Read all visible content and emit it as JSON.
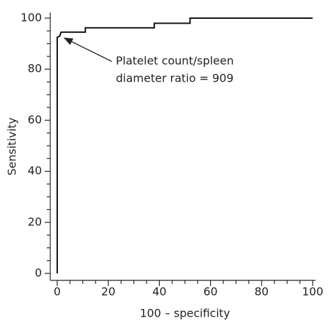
{
  "chart_data": {
    "type": "line",
    "x_label": "100 – specificity",
    "y_label": "Sensitivity",
    "annotation": [
      "Platelet count/spleen",
      "diameter ratio = 909"
    ],
    "annotation_point": [
      2,
      93
    ],
    "x": [
      0,
      0,
      1,
      1.5,
      11,
      11,
      38,
      38,
      52,
      52,
      100
    ],
    "values": [
      0,
      92.5,
      93,
      94.5,
      94.5,
      96.2,
      96.2,
      98,
      98,
      100,
      100
    ],
    "color": "#111111",
    "xlim": [
      0,
      100
    ],
    "ylim": [
      0,
      100
    ],
    "xticks": [
      0,
      20,
      40,
      60,
      80,
      100
    ],
    "yticks": [
      0,
      20,
      40,
      60,
      80,
      100
    ],
    "grid": false
  }
}
